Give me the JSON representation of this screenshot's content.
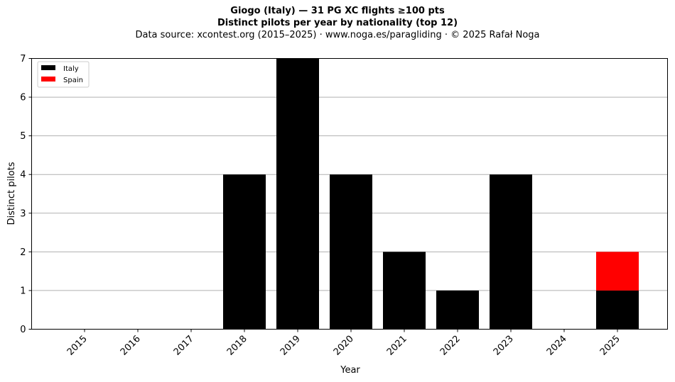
{
  "chart_data": {
    "type": "bar",
    "stacked": true,
    "title": "Giogo (Italy)  —  31 PG XC flights ≥100 pts",
    "subtitle": "Distinct pilots per year by nationality (top 12)",
    "source": "Data source: xcontest.org (2015–2025)  ·  www.noga.es/paragliding  ·  © 2025 Rafał Noga",
    "xlabel": "Year",
    "ylabel": "Distinct pilots",
    "ylim": [
      0,
      7
    ],
    "yticks": [
      0,
      1,
      2,
      3,
      4,
      5,
      6,
      7
    ],
    "grid": "y",
    "legend_position": "top-left",
    "categories": [
      "2015",
      "2016",
      "2017",
      "2018",
      "2019",
      "2020",
      "2021",
      "2022",
      "2023",
      "2024",
      "2025"
    ],
    "series": [
      {
        "name": "Italy",
        "color": "#000000",
        "values": [
          0,
          0,
          0,
          4,
          7,
          4,
          2,
          1,
          4,
          0,
          1
        ]
      },
      {
        "name": "Spain",
        "color": "#ff0000",
        "values": [
          0,
          0,
          0,
          0,
          0,
          0,
          0,
          0,
          0,
          0,
          1
        ]
      }
    ]
  }
}
